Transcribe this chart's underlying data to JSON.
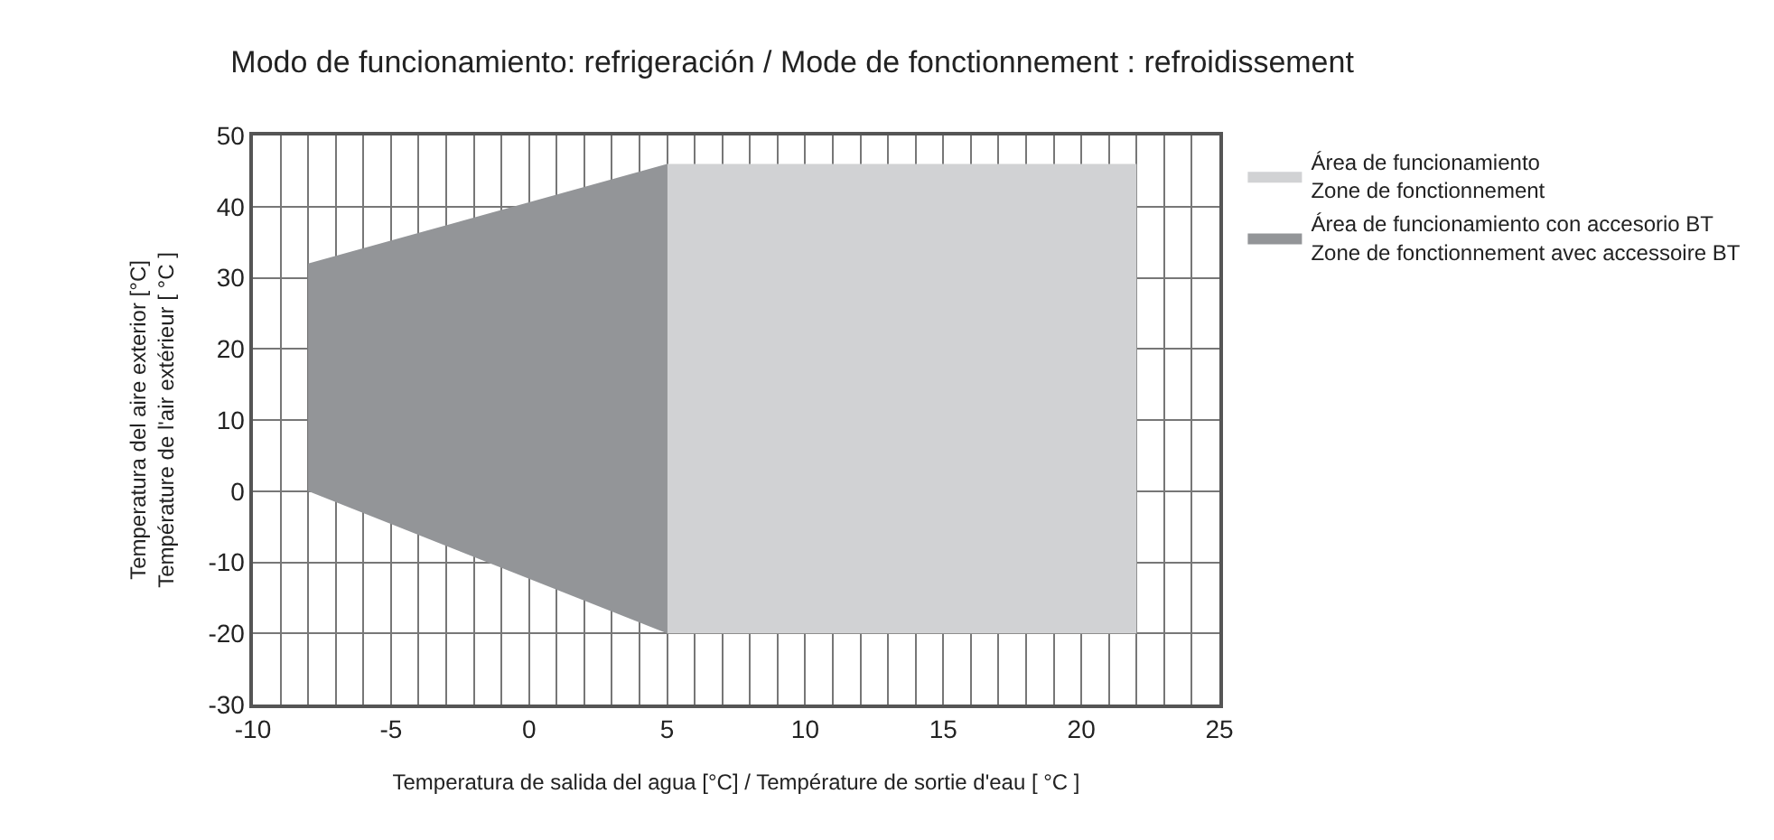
{
  "chart_data": {
    "type": "area",
    "title": "Modo de funcionamiento: refrigeración / Mode de fonctionnement : refroidissement",
    "xlabel": "Temperatura de salida del agua [°C] / Température de sortie d'eau [ °C ]",
    "ylabel": "Temperatura del aire exterior [°C]\nTempérature de l'air extérieur [ °C ]",
    "series": [
      {
        "name": "Área de funcionamiento\nZone de fonctionnement",
        "color": "#d1d2d4",
        "x": [
          5,
          5,
          22,
          22
        ],
        "values": [
          -20,
          46,
          46,
          -20
        ]
      },
      {
        "name": "Área de funcionamiento con accesorio BT\nZone de fonctionnement avec accessoire BT",
        "color": "#939598",
        "x": [
          -8,
          -8,
          5,
          5
        ],
        "values": [
          0,
          32,
          46,
          -20
        ]
      }
    ],
    "xlim": [
      -10,
      25
    ],
    "xticks": [
      -10,
      {
        "value": -9,
        "label": null
      },
      {
        "value": -8,
        "label": null
      },
      {
        "value": -7,
        "label": null
      },
      {
        "value": -6,
        "label": null
      },
      -5,
      {
        "value": -4,
        "label": null
      },
      {
        "value": -3,
        "label": null
      },
      {
        "value": -2,
        "label": null
      },
      {
        "value": -1,
        "label": null
      },
      0,
      {
        "value": 1,
        "label": null
      },
      {
        "value": 2,
        "label": null
      },
      {
        "value": 3,
        "label": null
      },
      {
        "value": 4,
        "label": null
      },
      5,
      {
        "value": 6,
        "label": null
      },
      {
        "value": 7,
        "label": null
      },
      {
        "value": 8,
        "label": null
      },
      {
        "value": 9,
        "label": null
      },
      10,
      {
        "value": 11,
        "label": null
      },
      {
        "value": 12,
        "label": null
      },
      {
        "value": 13,
        "label": null
      },
      {
        "value": 14,
        "label": null
      },
      15,
      {
        "value": 16,
        "label": null
      },
      {
        "value": 17,
        "label": null
      },
      {
        "value": 18,
        "label": null
      },
      {
        "value": 19,
        "label": null
      },
      20,
      {
        "value": 21,
        "label": null
      },
      {
        "value": 22,
        "label": null
      },
      {
        "value": 23,
        "label": null
      },
      {
        "value": 24,
        "label": null
      },
      25
    ],
    "ylim": [
      -30,
      50
    ],
    "yticks": [
      -30,
      -20,
      -10,
      0,
      10,
      20,
      30,
      40,
      50
    ],
    "grid": true,
    "legend": "right"
  }
}
